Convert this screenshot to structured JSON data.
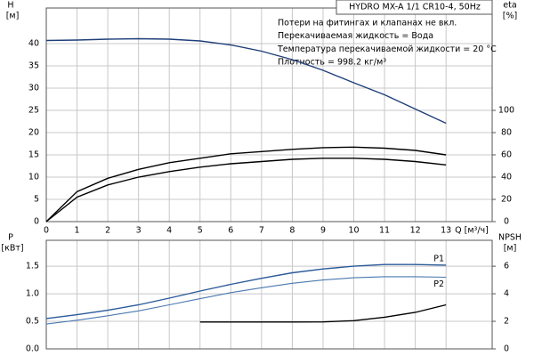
{
  "chart_data": [
    {
      "type": "line",
      "title": "HYDRO MX-A 1/1 CR10-4, 50Hz",
      "annotations": [
        "Потери на фитингах и клапанах не вкл.",
        "Перекачиваемая жидкость = Вода",
        "Температура перекачиваемой жидкости = 20 °C",
        "Плотность = 998.2 кг/м³"
      ],
      "xlabel": "Q [м³/ч]",
      "ylabel": "H",
      "yunit": "[м]",
      "y2label": "eta",
      "y2unit": "[%]",
      "x": [
        0,
        1,
        2,
        3,
        4,
        5,
        6,
        7,
        8,
        9,
        10,
        11,
        12,
        13
      ],
      "xlim": [
        0,
        14.5
      ],
      "xticks": [
        0,
        1,
        2,
        3,
        4,
        5,
        6,
        7,
        8,
        9,
        10,
        11,
        12,
        13
      ],
      "ylim": [
        0,
        48
      ],
      "yticks": [
        0,
        5,
        10,
        15,
        20,
        25,
        30,
        35,
        40
      ],
      "y2lim": [
        0,
        192
      ],
      "y2ticks": [
        0,
        20,
        40,
        60,
        80,
        100
      ],
      "grid": true,
      "series": [
        {
          "color": "#1f3f7a",
          "values": [
            40.7,
            40.8,
            41.0,
            41.1,
            41.0,
            40.6,
            39.7,
            38.3,
            36.4,
            34.0,
            31.2,
            28.5,
            25.3,
            22.1
          ]
        },
        {
          "color": "#000000",
          "axis": "y2",
          "values": [
            0,
            27,
            39,
            47,
            53,
            57,
            61,
            63,
            65,
            66.5,
            67,
            66,
            64,
            60
          ]
        },
        {
          "color": "#000000",
          "axis": "y2",
          "values": [
            0,
            22,
            33,
            40,
            45,
            49,
            52,
            54,
            56,
            57,
            57,
            56,
            54,
            51
          ]
        }
      ]
    },
    {
      "type": "line",
      "ylabel": "P",
      "yunit": "[кВт]",
      "y2label": "NPSH",
      "y2unit": "[м]",
      "x": [
        0,
        1,
        2,
        3,
        4,
        5,
        6,
        7,
        8,
        9,
        10,
        11,
        12,
        13
      ],
      "xlim": [
        0,
        14.5
      ],
      "xticks": [
        0,
        1,
        2,
        3,
        4,
        5,
        6,
        7,
        8,
        9,
        10,
        11,
        12,
        13
      ],
      "ylim": [
        0,
        1.97
      ],
      "yticks": [
        {
          "value": 0,
          "label": "0.0"
        },
        0.5,
        {
          "value": 1,
          "label": "1.0"
        },
        1.5
      ],
      "y2lim": [
        0,
        7.88
      ],
      "y2ticks": [
        0,
        2,
        4,
        6
      ],
      "grid": true,
      "series": [
        {
          "name": "P1",
          "color": "#2a5a9a",
          "values": [
            0.55,
            0.62,
            0.7,
            0.8,
            0.92,
            1.05,
            1.17,
            1.28,
            1.38,
            1.45,
            1.5,
            1.53,
            1.53,
            1.52
          ]
        },
        {
          "name": "P2",
          "color": "#4a78b0",
          "values": [
            0.45,
            0.52,
            0.6,
            0.69,
            0.8,
            0.91,
            1.02,
            1.11,
            1.19,
            1.25,
            1.29,
            1.31,
            1.31,
            1.3
          ]
        },
        {
          "color": "#000000",
          "axis": "y2",
          "x": [
            5,
            6,
            7,
            8,
            9,
            10,
            11,
            12,
            13
          ],
          "values": [
            1.95,
            1.95,
            1.95,
            1.95,
            1.96,
            2.05,
            2.3,
            2.65,
            3.2
          ]
        }
      ]
    }
  ]
}
